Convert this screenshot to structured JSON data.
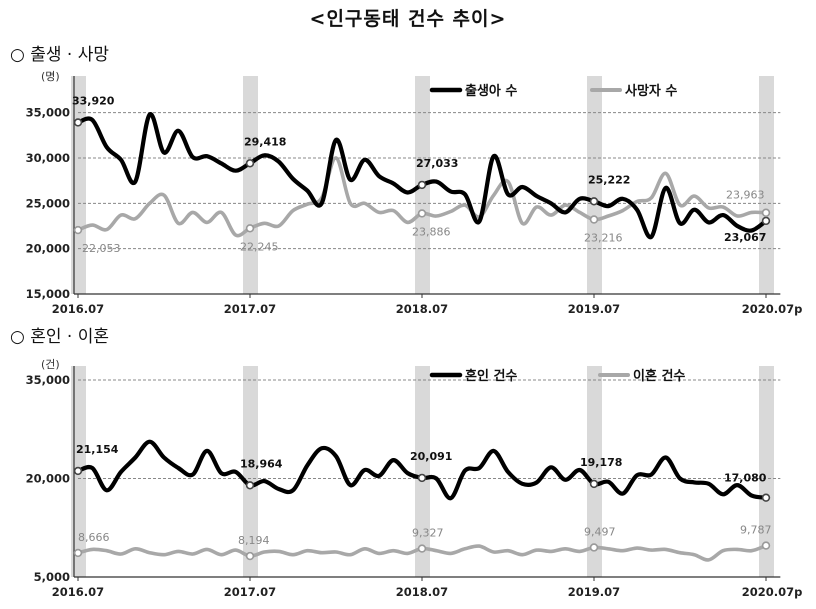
{
  "title": "<인구동태 건수 추이>",
  "sections": [
    {
      "label": "○ 출생 · 사망"
    },
    {
      "label": "○ 혼인 · 이혼"
    }
  ],
  "colors": {
    "primary": "#000000",
    "secondary": "#a8a8a8",
    "band": "#d9d9d9",
    "grid": "#888888"
  },
  "chart_data": [
    {
      "type": "line",
      "unit": "(명)",
      "y_ticks": [
        "35,000",
        "30,000",
        "25,000",
        "20,000",
        "15,000"
      ],
      "ylim": [
        15000,
        37500
      ],
      "x_ticks": [
        "2016.07",
        "2017.07",
        "2018.07",
        "2019.07",
        "2020.07p"
      ],
      "x_tick_index": [
        0,
        12,
        24,
        36,
        48
      ],
      "highlight_months": [
        0,
        12,
        24,
        36,
        48
      ],
      "grid": true,
      "legend_position": "top-right",
      "series": [
        {
          "name": "출생아 수",
          "color": "#000000",
          "values": [
            33920,
            34200,
            31200,
            29800,
            27400,
            34800,
            30600,
            33000,
            30100,
            30200,
            29400,
            28600,
            29418,
            30300,
            29600,
            27700,
            26400,
            25000,
            32000,
            27600,
            29800,
            28000,
            27200,
            26200,
            27033,
            27400,
            26300,
            26000,
            23000,
            30200,
            26000,
            26800,
            25800,
            25000,
            24000,
            25500,
            25222,
            24700,
            25500,
            24300,
            21300,
            26700,
            22800,
            24300,
            22900,
            23700,
            22500,
            22000,
            23067
          ]
        },
        {
          "name": "사망자 수",
          "color": "#a8a8a8",
          "values": [
            22053,
            22600,
            22100,
            23700,
            23300,
            25000,
            25900,
            22800,
            24000,
            22900,
            24000,
            21500,
            22245,
            22800,
            22500,
            24200,
            24900,
            25600,
            30000,
            25000,
            25000,
            24000,
            24200,
            22900,
            23886,
            23600,
            24100,
            24800,
            23500,
            25900,
            27400,
            22800,
            24600,
            23700,
            24800,
            24000,
            23216,
            23600,
            24200,
            25200,
            25600,
            28300,
            24800,
            25800,
            24500,
            24600,
            23600,
            24000,
            23963
          ]
        }
      ],
      "data_labels": [
        {
          "series": 0,
          "index": 0,
          "text": "33,920"
        },
        {
          "series": 0,
          "index": 12,
          "text": "29,418"
        },
        {
          "series": 0,
          "index": 24,
          "text": "27,033"
        },
        {
          "series": 0,
          "index": 36,
          "text": "25,222"
        },
        {
          "series": 0,
          "index": 48,
          "text": "23,067"
        },
        {
          "series": 1,
          "index": 0,
          "text": "22,053"
        },
        {
          "series": 1,
          "index": 12,
          "text": "22,245"
        },
        {
          "series": 1,
          "index": 24,
          "text": "23,886"
        },
        {
          "series": 1,
          "index": 36,
          "text": "23,216"
        },
        {
          "series": 1,
          "index": 48,
          "text": "23,963"
        }
      ]
    },
    {
      "type": "line",
      "unit": "(건)",
      "y_ticks": [
        "35,000",
        "20,000",
        "5,000"
      ],
      "ylim": [
        5000,
        35000
      ],
      "x_ticks": [
        "2016.07",
        "2017.07",
        "2018.07",
        "2019.07",
        "2020.07p"
      ],
      "x_tick_index": [
        0,
        12,
        24,
        36,
        48
      ],
      "highlight_months": [
        0,
        12,
        24,
        36,
        48
      ],
      "grid": true,
      "legend_position": "top-right",
      "series": [
        {
          "name": "혼인 건수",
          "color": "#000000",
          "values": [
            21154,
            21600,
            18200,
            21000,
            23200,
            25600,
            23200,
            21600,
            20600,
            24200,
            20800,
            21000,
            18964,
            19600,
            18400,
            18200,
            22000,
            24600,
            23400,
            19000,
            21300,
            20400,
            22800,
            20800,
            20091,
            20000,
            17000,
            21200,
            21600,
            24200,
            21000,
            19200,
            19400,
            21700,
            19800,
            21300,
            19178,
            19500,
            17700,
            20500,
            20600,
            23200,
            20000,
            19400,
            19200,
            17600,
            19000,
            17400,
            17080
          ]
        },
        {
          "name": "이혼 건수",
          "color": "#a8a8a8",
          "values": [
            8666,
            9200,
            9000,
            8500,
            9300,
            8700,
            8400,
            8900,
            8500,
            9200,
            8400,
            9100,
            8194,
            8800,
            8900,
            8400,
            9000,
            8700,
            8800,
            8400,
            9300,
            8600,
            9000,
            8600,
            9327,
            9000,
            8600,
            9300,
            9700,
            8800,
            9000,
            8400,
            9100,
            8900,
            9300,
            8900,
            9497,
            9300,
            9000,
            9400,
            9100,
            9200,
            8700,
            8400,
            7600,
            9000,
            9200,
            9000,
            9787
          ]
        }
      ],
      "data_labels": [
        {
          "series": 0,
          "index": 0,
          "text": "21,154"
        },
        {
          "series": 0,
          "index": 12,
          "text": "18,964"
        },
        {
          "series": 0,
          "index": 24,
          "text": "20,091"
        },
        {
          "series": 0,
          "index": 36,
          "text": "19,178"
        },
        {
          "series": 0,
          "index": 48,
          "text": "17,080"
        },
        {
          "series": 1,
          "index": 0,
          "text": "8,666"
        },
        {
          "series": 1,
          "index": 12,
          "text": "8,194"
        },
        {
          "series": 1,
          "index": 24,
          "text": "9,327"
        },
        {
          "series": 1,
          "index": 36,
          "text": "9,497"
        },
        {
          "series": 1,
          "index": 48,
          "text": "9,787"
        }
      ]
    }
  ]
}
